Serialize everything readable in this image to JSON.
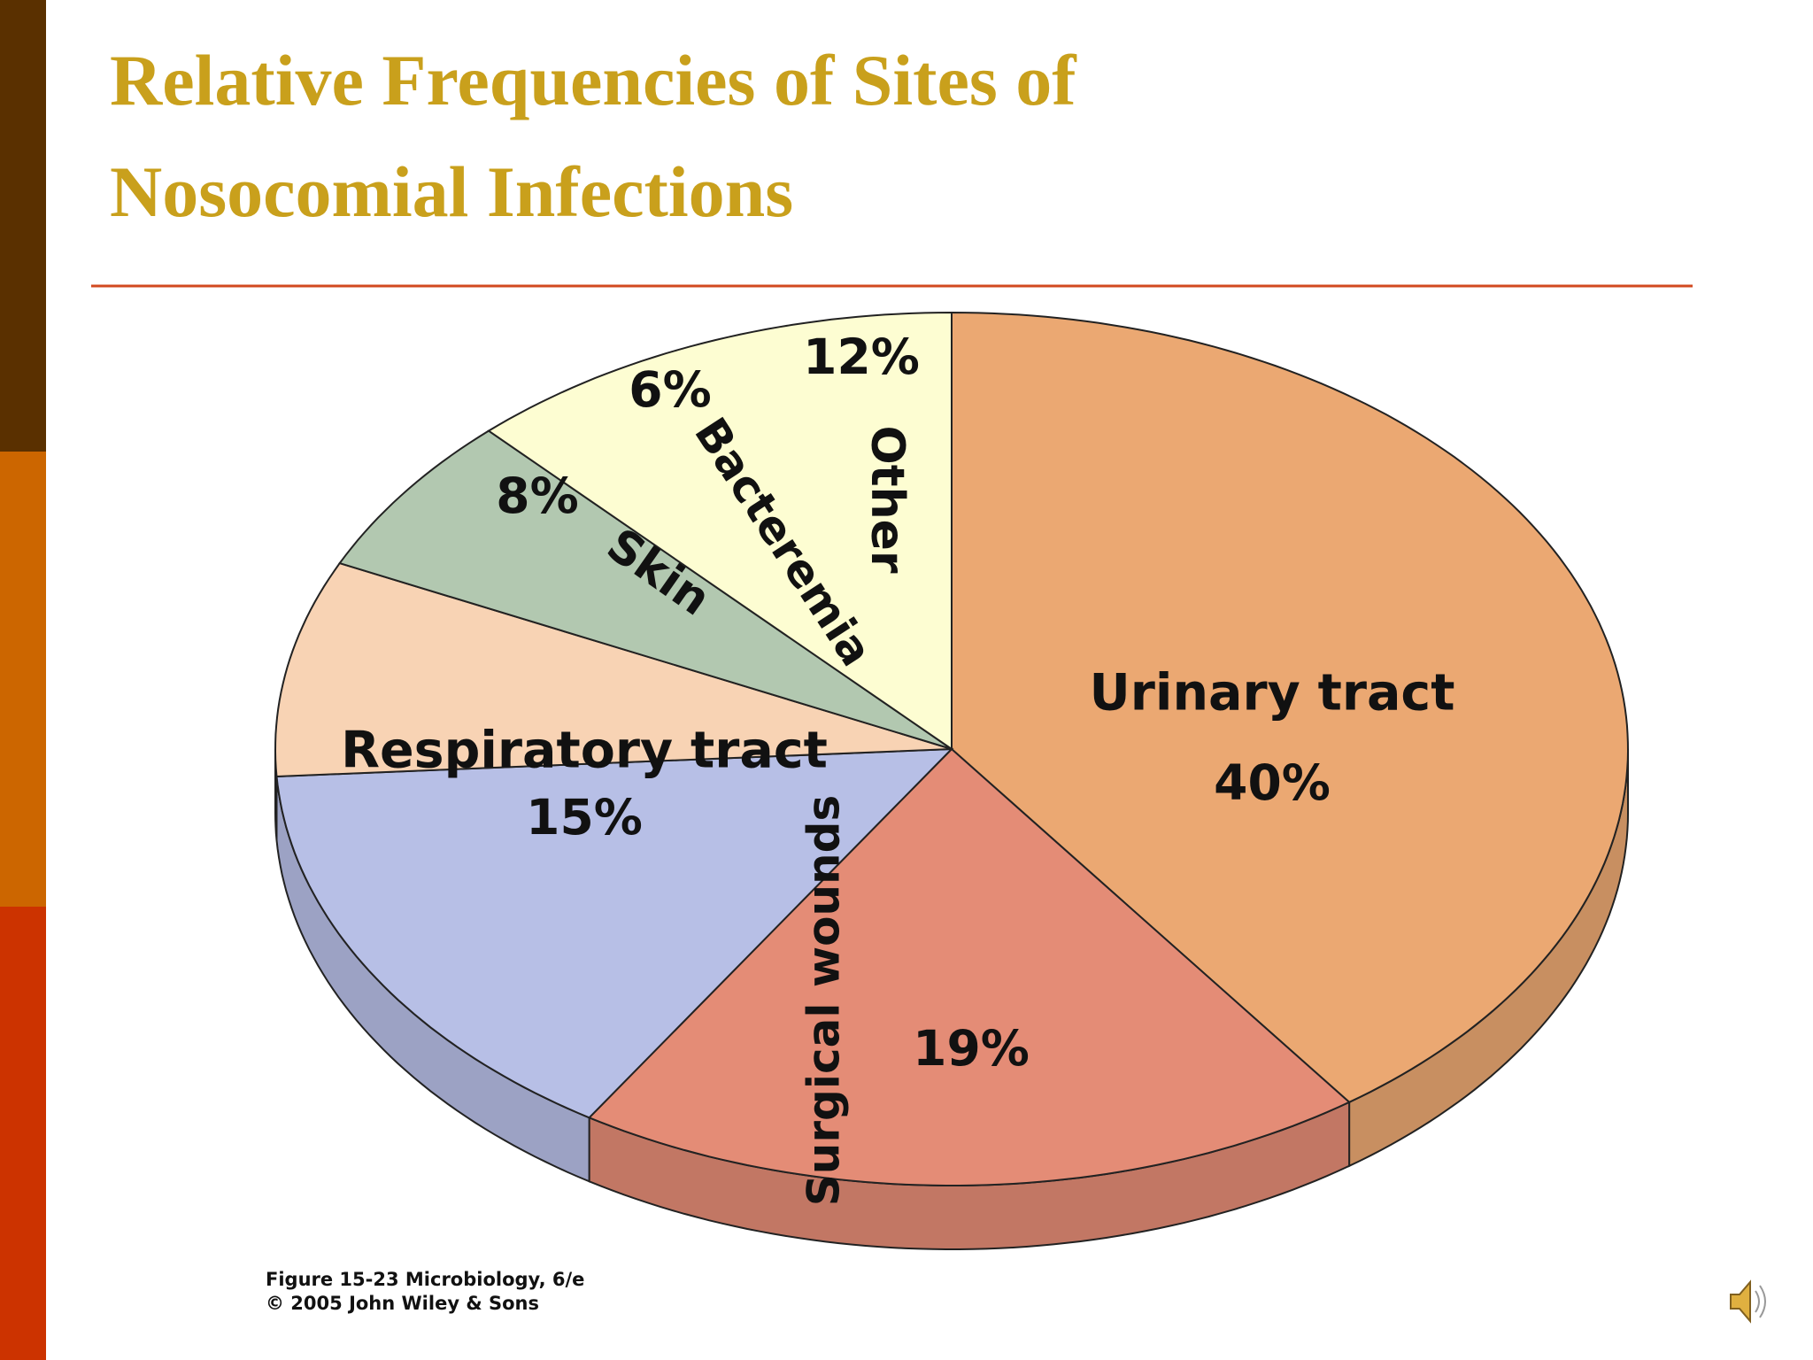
{
  "chart_data": {
    "type": "pie",
    "title": "Relative Frequencies of Sites of Nosocomial Infections",
    "categories": [
      "Urinary tract",
      "Surgical wounds",
      "Respiratory tract",
      "Skin",
      "Bacteremia",
      "Other"
    ],
    "values": [
      40,
      19,
      15,
      8,
      6,
      12
    ],
    "value_labels": [
      "40%",
      "19%",
      "15%",
      "8%",
      "6%",
      "12%"
    ],
    "colors": [
      "#eba872",
      "#e48c76",
      "#b7bfe6",
      "#f8d3b4",
      "#b2c8b0",
      "#fdfdd2"
    ],
    "source": [
      "Figure 15-23  Microbiology, 6/e",
      "© 2005 John Wiley & Sons"
    ]
  }
}
